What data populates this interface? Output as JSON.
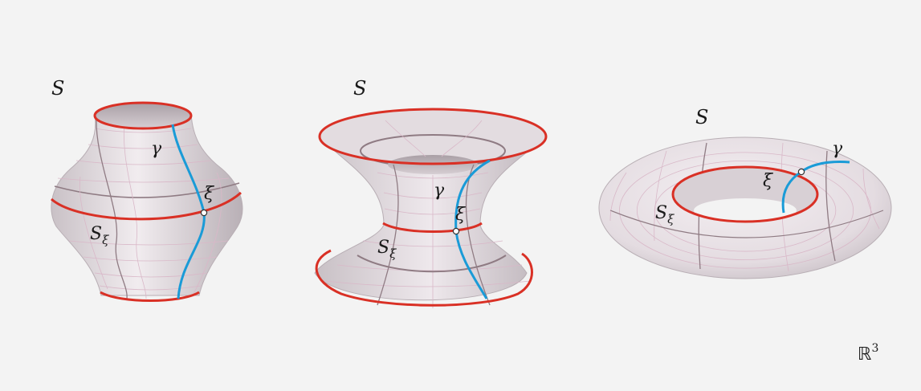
{
  "colors": {
    "background": "#f3f3f3",
    "surface": "#ece6ea",
    "grid_fine": "#d9b8c8",
    "grid_major": "#8f7b83",
    "boundary": "#d93025",
    "curve": "#1a9bd7",
    "text": "#1a1a1a"
  },
  "labels": {
    "surface": "S",
    "geodesic": "γ",
    "point": "ξ",
    "section_base": "S",
    "section_sub": "ξ",
    "space_base": "ℝ",
    "space_exp": "3"
  },
  "figures": [
    {
      "name": "vase"
    },
    {
      "name": "hyperboloid"
    },
    {
      "name": "torus"
    }
  ]
}
